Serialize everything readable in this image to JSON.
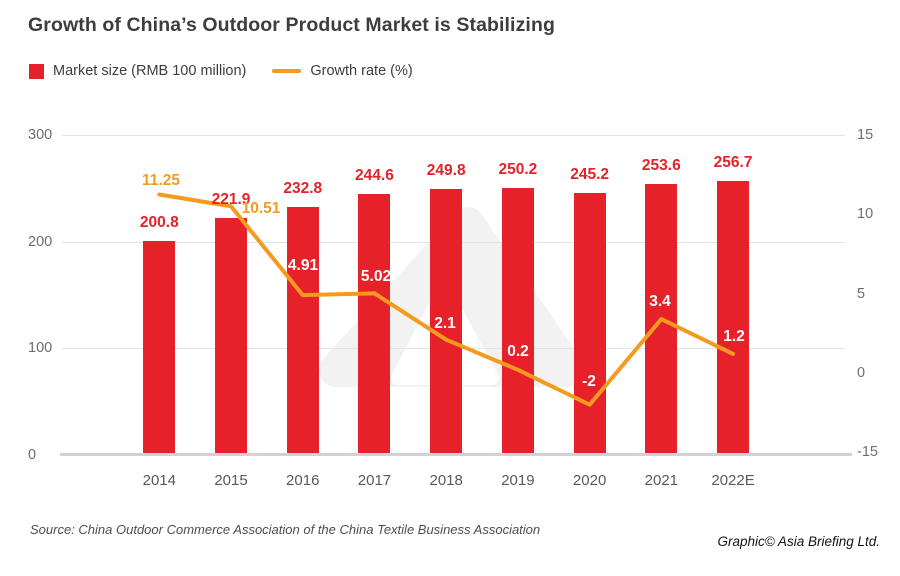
{
  "title": "Growth of China’s Outdoor Product Market is Stabilizing",
  "legend": {
    "market_size": {
      "label": "Market size (RMB 100 million)",
      "color": "#e62129"
    },
    "growth_rate": {
      "label": "Growth rate (%)",
      "color": "#f49b1f"
    }
  },
  "chart_data": {
    "type": "bar+line",
    "title": "Growth of China’s Outdoor Product Market is Stabilizing",
    "categories": [
      "2014",
      "2015",
      "2016",
      "2017",
      "2018",
      "2019",
      "2020",
      "2021",
      "2022E"
    ],
    "series": [
      {
        "name": "Market size (RMB 100 million)",
        "type": "bar",
        "axis": "left",
        "color": "#e62129",
        "values": [
          200.8,
          221.9,
          232.8,
          244.6,
          249.8,
          250.2,
          245.2,
          253.6,
          256.7
        ]
      },
      {
        "name": "Growth rate (%)",
        "type": "line",
        "axis": "right",
        "color": "#f49b1f",
        "values": [
          11.25,
          10.51,
          4.91,
          5.02,
          2.1,
          0.2,
          -2,
          3.4,
          1.2
        ]
      }
    ],
    "left_axis": {
      "ticks": [
        "300",
        "200",
        "100",
        "0"
      ],
      "range": [
        0,
        300
      ]
    },
    "right_axis": {
      "ticks": [
        "15",
        "10",
        "5",
        "0",
        "-15"
      ]
    },
    "grid": true,
    "legend_position": "top-left"
  },
  "source": "Source: China Outdoor Commerce Association of the China Textile Business Association",
  "credit": "Graphic© Asia Briefing Ltd."
}
